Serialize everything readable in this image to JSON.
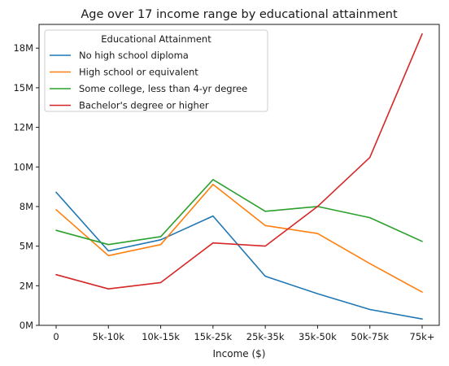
{
  "chart_data": {
    "type": "line",
    "title": "Age over 17 income range by educational attainment",
    "xlabel": "Income ($)",
    "ylabel": "",
    "categories": [
      "0",
      "5k-10k",
      "10k-15k",
      "15k-25k",
      "25k-35k",
      "35k-50k",
      "50k-75k",
      "75k+"
    ],
    "ylim": [
      0,
      19000000
    ],
    "yticks": [
      0,
      2500000,
      5000000,
      7500000,
      10000000,
      12500000,
      15000000,
      17500000
    ],
    "ytick_labels": [
      "0M",
      "2M",
      "5M",
      "8M",
      "10M",
      "12M",
      "15M",
      "18M"
    ],
    "grid": false,
    "legend": {
      "title": "Educational Attainment",
      "placement": "top-left"
    },
    "series": [
      {
        "name": "No high school diploma",
        "color": "#1f77b4",
        "values": [
          8400000,
          4700000,
          5400000,
          6900000,
          3100000,
          2000000,
          1000000,
          400000
        ]
      },
      {
        "name": "High school or equivalent",
        "color": "#ff7f0e",
        "values": [
          7300000,
          4400000,
          5100000,
          8900000,
          6300000,
          5800000,
          3900000,
          2100000
        ]
      },
      {
        "name": "Some college, less than 4-yr degree",
        "color": "#2ca02c",
        "values": [
          6000000,
          5100000,
          5600000,
          9200000,
          7200000,
          7500000,
          6800000,
          5300000
        ]
      },
      {
        "name": "Bachelor's degree or higher",
        "color": "#d62728",
        "values": [
          3200000,
          2300000,
          2700000,
          5200000,
          5000000,
          7500000,
          10600000,
          18400000
        ]
      }
    ]
  }
}
